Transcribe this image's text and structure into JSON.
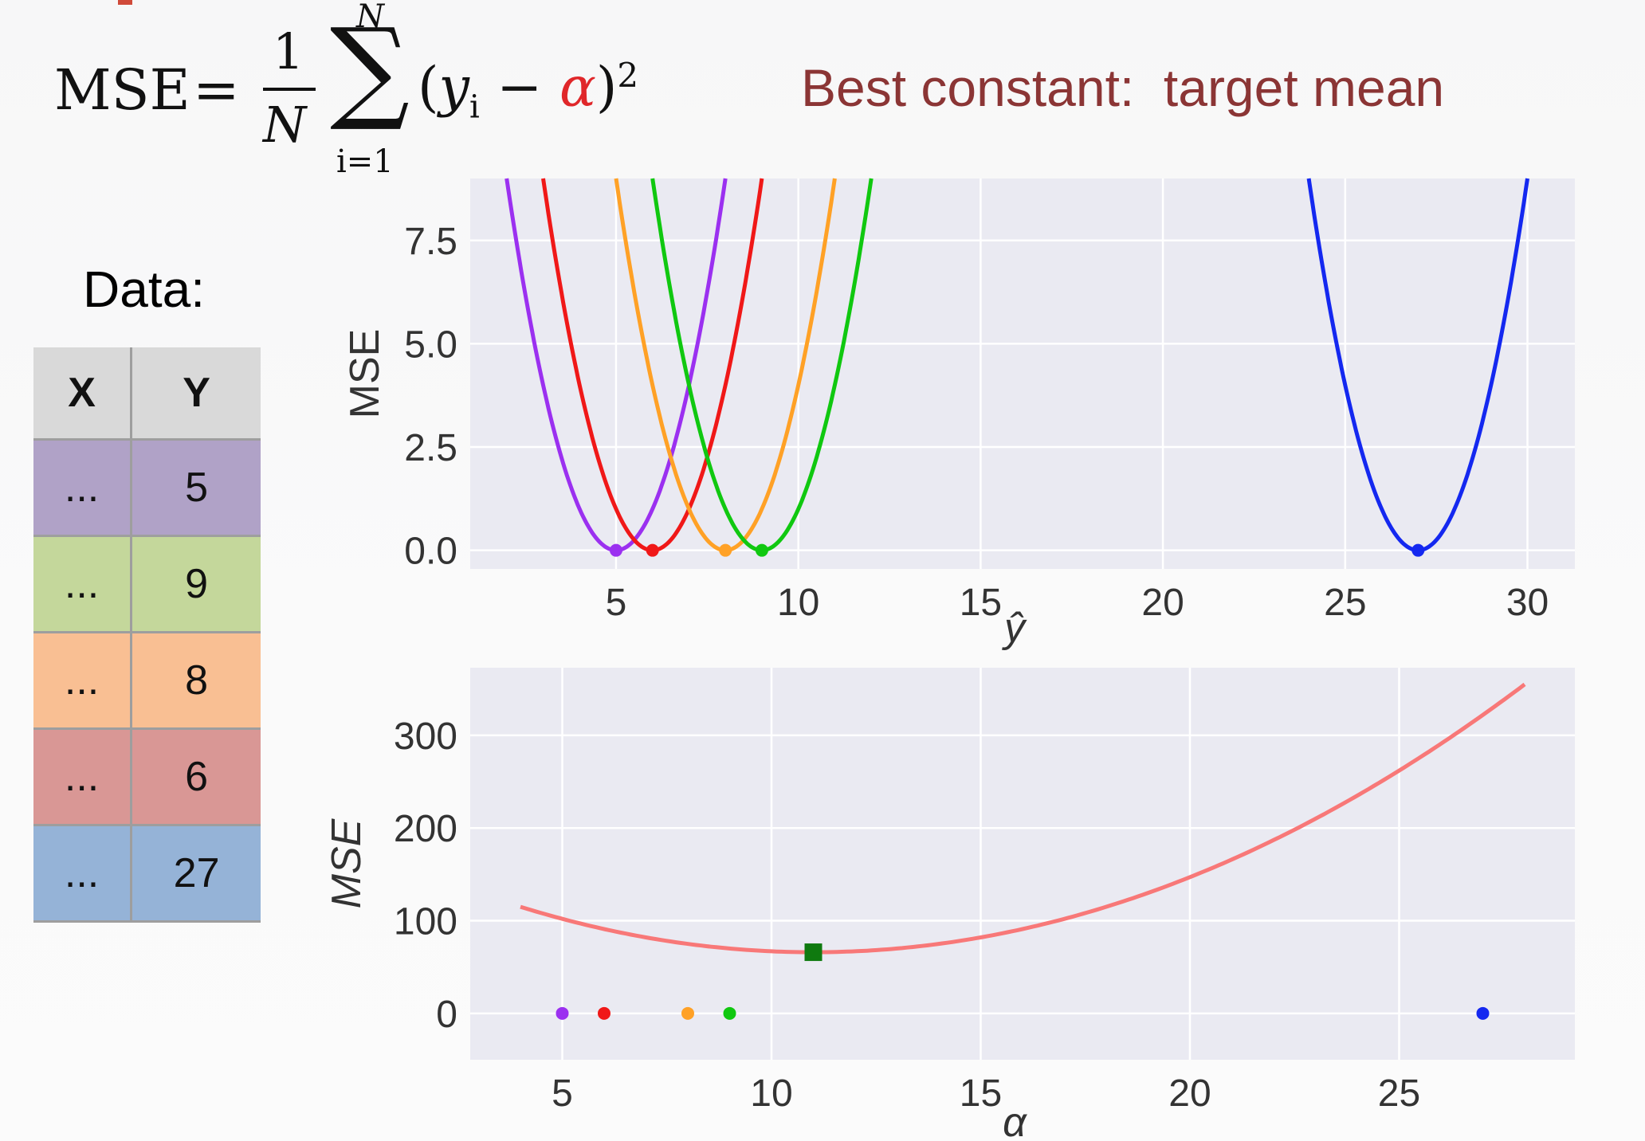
{
  "formula": {
    "lhs": "MSE",
    "eq": "=",
    "num": "1",
    "den": "N",
    "sum_top": "N",
    "sum_bot": "i=1",
    "y": "y",
    "sub": "i",
    "minus": " − ",
    "alpha": "α",
    "power": "2"
  },
  "best_constant": "Best constant:  target mean",
  "data_title": "Data:",
  "table": {
    "headers": [
      "X",
      "Y"
    ],
    "rows": [
      {
        "x": "...",
        "y": "5",
        "color": "#b0a2c7"
      },
      {
        "x": "...",
        "y": "9",
        "color": "#c4d79b"
      },
      {
        "x": "...",
        "y": "8",
        "color": "#f9bf93"
      },
      {
        "x": "...",
        "y": "6",
        "color": "#d99795"
      },
      {
        "x": "...",
        "y": "27",
        "color": "#95b3d7"
      }
    ]
  },
  "chart_data": [
    {
      "type": "line",
      "xlabel": "ŷ",
      "ylabel": "MSE",
      "xlim": [
        1,
        31.3
      ],
      "ylim": [
        -0.45,
        9.0
      ],
      "xticks": [
        5,
        10,
        15,
        20,
        25,
        30
      ],
      "xtick_labels": [
        "5",
        "10",
        "15",
        "20",
        "25",
        "30"
      ],
      "yticks": [
        0,
        2.5,
        5,
        7.5
      ],
      "ytick_labels": [
        "0.0",
        "2.5",
        "5.0",
        "7.5"
      ],
      "grid": true,
      "series": [
        {
          "target": 5,
          "x_range": [
            2,
            8
          ],
          "color": "#9b30f0",
          "formula": "(x-5)^2"
        },
        {
          "target": 6,
          "x_range": [
            3,
            9
          ],
          "color": "#f01818",
          "formula": "(x-6)^2"
        },
        {
          "target": 8,
          "x_range": [
            5,
            11
          ],
          "color": "#ffa126",
          "formula": "(x-8)^2"
        },
        {
          "target": 9,
          "x_range": [
            6,
            12
          ],
          "color": "#10c810",
          "formula": "(x-9)^2"
        },
        {
          "target": 27,
          "x_range": [
            24,
            30
          ],
          "color": "#1428f0",
          "formula": "(x-27)^2"
        }
      ],
      "minimum_points": [
        {
          "x": 5,
          "y": 0,
          "color": "#9b30f0"
        },
        {
          "x": 6,
          "y": 0,
          "color": "#f01818"
        },
        {
          "x": 8,
          "y": 0,
          "color": "#ffa126"
        },
        {
          "x": 9,
          "y": 0,
          "color": "#10c810"
        },
        {
          "x": 27,
          "y": 0,
          "color": "#1428f0"
        }
      ]
    },
    {
      "type": "line",
      "xlabel": "α",
      "ylabel": "MSE",
      "xlim": [
        2.8,
        29.2
      ],
      "ylim": [
        -50,
        373
      ],
      "xticks": [
        5,
        10,
        15,
        20,
        25
      ],
      "xtick_labels": [
        "5",
        "10",
        "15",
        "20",
        "25"
      ],
      "yticks": [
        0,
        100,
        200,
        300
      ],
      "ytick_labels": [
        "0",
        "100",
        "200",
        "300"
      ],
      "grid": true,
      "curve": {
        "x_range": [
          4,
          28
        ],
        "color": "#f87878",
        "formula": "mean over data of (y-α)^2",
        "data": [
          5,
          9,
          8,
          6,
          27
        ]
      },
      "data_points": [
        {
          "x": 5,
          "y": 0,
          "color": "#9b30f0"
        },
        {
          "x": 6,
          "y": 0,
          "color": "#f01818"
        },
        {
          "x": 8,
          "y": 0,
          "color": "#ffa126"
        },
        {
          "x": 9,
          "y": 0,
          "color": "#10c810"
        },
        {
          "x": 27,
          "y": 0,
          "color": "#1428f0"
        }
      ],
      "minimum": {
        "x": 11,
        "y": 66,
        "color": "#0f7a0f",
        "marker": "square"
      }
    }
  ]
}
